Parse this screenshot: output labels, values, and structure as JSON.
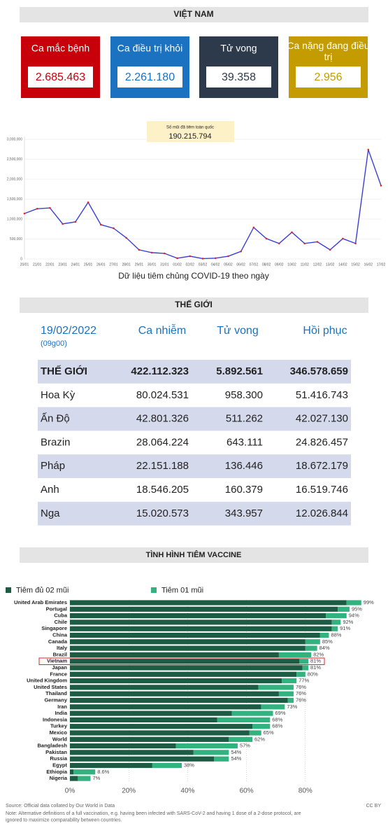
{
  "vietnam": {
    "title": "VIỆT NAM",
    "cards": [
      {
        "label": "Ca mắc bệnh",
        "value": "2.685.463",
        "color": "#c8000a"
      },
      {
        "label": "Ca điều trị khỏi",
        "value": "2.261.180",
        "color": "#1b72c0"
      },
      {
        "label": "Tử vong",
        "value": "39.358",
        "color": "#2d3a4b"
      },
      {
        "label": "Ca nặng đang điều trị",
        "value": "2.956",
        "color": "#c49b00"
      }
    ]
  },
  "chart_data": [
    {
      "type": "line",
      "title": "Dữ liệu tiêm chủng COVID-19 theo ngày",
      "annotation": {
        "label": "Số mũi đã tiêm toàn quốc",
        "value": "190.215.794"
      },
      "categories": [
        "20/01",
        "21/01",
        "22/01",
        "23/01",
        "24/01",
        "25/01",
        "26/01",
        "27/01",
        "28/01",
        "29/01",
        "30/01",
        "31/01",
        "01/02",
        "02/02",
        "03/02",
        "04/02",
        "05/02",
        "06/02",
        "07/02",
        "08/02",
        "09/02",
        "10/02",
        "11/02",
        "12/02",
        "13/02",
        "14/02",
        "15/02",
        "16/02",
        "17/02"
      ],
      "values": [
        1140000,
        1260000,
        1280000,
        880000,
        930000,
        1420000,
        860000,
        770000,
        530000,
        230000,
        160000,
        140000,
        20000,
        70000,
        10000,
        20000,
        70000,
        190000,
        790000,
        510000,
        390000,
        670000,
        390000,
        430000,
        230000,
        510000,
        390000,
        2740000,
        1840000
      ],
      "color": "#3b3fd8",
      "marker_color": "#e0252b",
      "ylim": [
        0,
        3000000
      ],
      "yticks": [
        0,
        {
          "value": 500000,
          "label": "500,000"
        },
        {
          "value": 1000000,
          "label": "1,000,000"
        },
        {
          "value": 1500000,
          "label": "1,500,000"
        },
        {
          "value": 2000000,
          "label": "2,000,000"
        },
        {
          "value": 2500000,
          "label": "2,500,000"
        },
        {
          "value": 3000000,
          "label": "3,000,000"
        }
      ],
      "grid": true
    },
    {
      "type": "stacked-barh",
      "title": "TÌNH HÌNH TIÊM VACCINE",
      "categories": [
        "United Arab Emirates",
        "Portugal",
        "Cuba",
        "Chile",
        "Singapore",
        "China",
        "Canada",
        "Italy",
        "Brazil",
        "Vietnam",
        "Japan",
        "France",
        "United Kingdom",
        "United States",
        "Thailand",
        "Germany",
        "Iran",
        "India",
        "Indonesia",
        "Turkey",
        "Mexico",
        "World",
        "Bangladesh",
        "Pakistan",
        "Russia",
        "Egypt",
        "Ethiopia",
        "Nigeria"
      ],
      "series": [
        {
          "name": "Tiêm đủ 02 mũi",
          "color": "#1c5c44",
          "values": [
            94,
            91,
            87,
            89,
            89,
            85,
            80,
            80,
            71,
            78,
            79,
            77,
            72,
            64,
            71,
            74,
            65,
            55,
            50,
            62,
            61,
            54,
            36,
            42,
            49,
            28,
            1.2,
            2.7
          ]
        },
        {
          "name": "Tiêm 01 mũi",
          "color": "#32b27f",
          "values": [
            5,
            4,
            7,
            3,
            2,
            3,
            5,
            4,
            11,
            3,
            2,
            3,
            5,
            12,
            5,
            2,
            8,
            14,
            18,
            6,
            4,
            8,
            21,
            12,
            5,
            10,
            7.4,
            4.3
          ]
        }
      ],
      "totals": {
        "values": [
          99,
          95,
          94,
          92,
          91,
          88,
          85,
          84,
          82,
          81,
          81,
          80,
          77,
          76,
          76,
          76,
          73,
          69,
          68,
          68,
          65,
          62,
          57,
          54,
          54,
          38,
          8.6,
          7
        ],
        "value_labels": [
          "99%",
          "95%",
          "94%",
          "92%",
          "91%",
          "88%",
          "85%",
          "84%",
          "82%",
          "81%",
          "81%",
          "80%",
          "77%",
          "76%",
          "76%",
          "76%",
          "73%",
          "69%",
          "68%",
          "68%",
          "65%",
          "62%",
          "57%",
          "54%",
          "54%",
          "38%",
          "8.6%",
          "7%"
        ]
      },
      "xlim": [
        0,
        100
      ],
      "xticks": [
        {
          "value": 0,
          "label": "0%"
        },
        {
          "value": 20,
          "label": "20%"
        },
        {
          "value": 40,
          "label": "40%"
        },
        {
          "value": 60,
          "label": "60%"
        },
        {
          "value": 80,
          "label": "80%"
        }
      ],
      "grid": true,
      "source": "Source: Official data collated by Our World in Data",
      "note": [
        "Note: Alternative definitions of a full vaccination, e.g. having been infected with SARS-CoV-2 and having 1 dose of a 2-dose protocol, are",
        "ignored to maximize comparability between countries."
      ],
      "license": "CC BY"
    }
  ],
  "world": {
    "title": "THẾ GIỚI",
    "date": "19/02/2022",
    "time": "(09g00)",
    "columns": [
      "Ca nhiễm",
      "Tử vong",
      "Hồi phục"
    ],
    "rows": [
      [
        "THẾ GIỚI",
        "422.112.323",
        "5.892.561",
        "346.578.659"
      ],
      [
        "Hoa Kỳ",
        "80.024.531",
        "958.300",
        "51.416.743"
      ],
      [
        "Ấn Độ",
        "42.801.326",
        "511.262",
        "42.027.130"
      ],
      [
        "Brazin",
        "28.064.224",
        "643.111",
        "24.826.457"
      ],
      [
        "Pháp",
        "22.151.188",
        "136.446",
        "18.672.179"
      ],
      [
        "Anh",
        "18.546.205",
        "160.379",
        "16.519.746"
      ],
      [
        "Nga",
        "15.020.573",
        "343.957",
        "12.026.844"
      ]
    ]
  }
}
